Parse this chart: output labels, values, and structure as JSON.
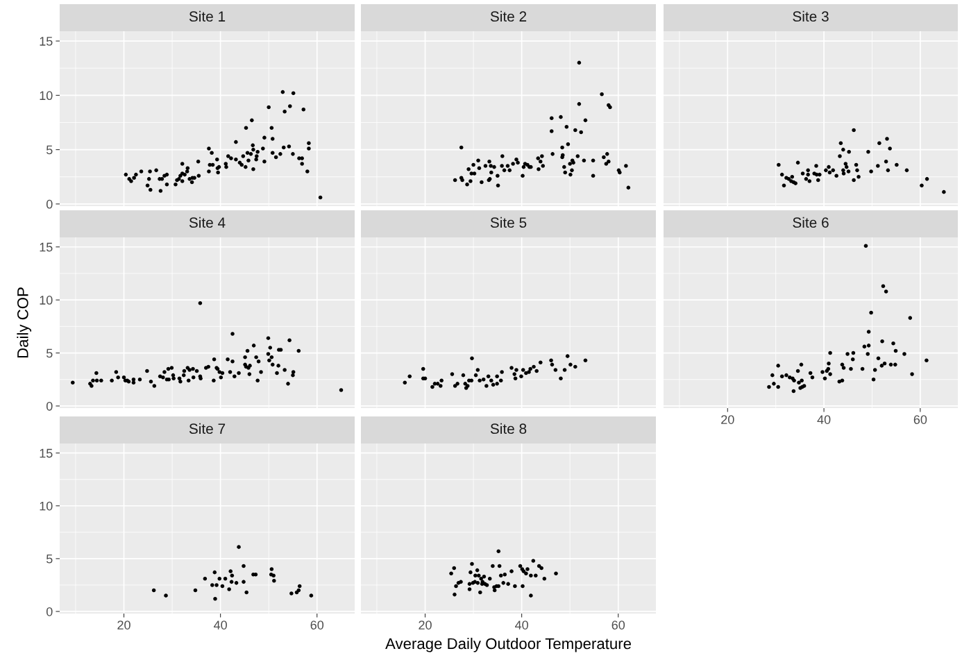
{
  "chart_data": [
    {
      "type": "scatter",
      "title": "Site 1",
      "color": "#000000",
      "marker": "circle",
      "grid": true,
      "tick_labels": "y",
      "xlim": [
        6.7,
        67.8
      ],
      "ylim": [
        -0.2,
        15.9
      ],
      "xticks": [
        20,
        40,
        60
      ],
      "yticks": [
        0,
        5,
        10,
        15
      ],
      "x": [
        20.4,
        21.1,
        21.5,
        22.1,
        22.5,
        23.6,
        24.9,
        25.2,
        25.5,
        25.4,
        26.7,
        27.6,
        27.4,
        27.9,
        28.4,
        28.9,
        28.9,
        30.7,
        31.0,
        31.4,
        31.7,
        32.1,
        32.1,
        32.1,
        32.6,
        33.2,
        33.1,
        33.6,
        34.1,
        34.2,
        34.6,
        35.4,
        35.5,
        37.6,
        37.6,
        37.8,
        38.2,
        38.4,
        39.3,
        39.4,
        39.5,
        39.7,
        41.1,
        41.2,
        41.6,
        42.2,
        43.2,
        43.2,
        44.0,
        44.4,
        44.7,
        45.2,
        45.3,
        45.6,
        45.8,
        46.3,
        46.5,
        46.7,
        46.8,
        46.8,
        47.4,
        47.5,
        47.7,
        48.8,
        49.1,
        49.1,
        50.0,
        50.6,
        50.8,
        50.8,
        51.5,
        52.4,
        52.9,
        53.1,
        53.3,
        54.2,
        54.4,
        55.0,
        55.1,
        56.3,
        56.9,
        56.9,
        57.2,
        58.0,
        58.3,
        58.3,
        60.7
      ],
      "values": [
        2.7,
        2.3,
        2.1,
        2.4,
        2.7,
        3.0,
        1.7,
        2.3,
        1.3,
        3.0,
        3.1,
        1.2,
        2.3,
        2.3,
        2.6,
        2.7,
        1.8,
        1.8,
        2.2,
        2.3,
        2.6,
        3.7,
        2.8,
        2.1,
        2.7,
        3.3,
        3.0,
        2.3,
        2.0,
        2.4,
        2.4,
        3.9,
        2.6,
        5.1,
        3.0,
        3.6,
        4.7,
        3.6,
        4.1,
        3.3,
        2.9,
        3.4,
        3.7,
        3.4,
        4.4,
        4.2,
        5.7,
        4.1,
        3.8,
        3.6,
        4.4,
        3.4,
        7.0,
        4.7,
        4.0,
        4.6,
        7.7,
        5.4,
        5.0,
        3.2,
        4.1,
        4.4,
        4.8,
        5.1,
        6.1,
        3.9,
        8.9,
        7.0,
        4.7,
        6.0,
        4.3,
        4.6,
        10.3,
        5.2,
        8.5,
        5.3,
        9.0,
        4.6,
        10.2,
        4.2,
        4.2,
        3.7,
        8.7,
        3.0,
        5.6,
        5.1,
        0.6
      ]
    },
    {
      "type": "scatter",
      "title": "Site 2",
      "color": "#000000",
      "marker": "circle",
      "grid": true,
      "tick_labels": false,
      "xlim": [
        6.7,
        67.8
      ],
      "ylim": [
        -0.2,
        15.9
      ],
      "xticks": [
        20,
        40,
        60
      ],
      "yticks": [
        0,
        5,
        10,
        15
      ],
      "x": [
        26.2,
        27.5,
        27.7,
        27.5,
        28.7,
        29.0,
        29.4,
        29.6,
        30.0,
        30.2,
        31.0,
        31.2,
        31.7,
        32.5,
        33.2,
        33.3,
        33.4,
        33.6,
        33.7,
        34.3,
        35.0,
        35.1,
        35.9,
        36.0,
        36.4,
        37.1,
        37.5,
        38.2,
        38.9,
        39.2,
        40.2,
        40.4,
        40.7,
        41.2,
        41.6,
        41.9,
        43.4,
        43.5,
        43.9,
        44.2,
        44.4,
        46.2,
        46.2,
        46.4,
        48.1,
        48.4,
        48.5,
        48.4,
        48.8,
        49.0,
        49.3,
        49.6,
        50.0,
        50.1,
        50.4,
        50.5,
        50.7,
        51.1,
        51.6,
        51.9,
        51.9,
        52.3,
        52.9,
        53.2,
        54.8,
        54.8,
        56.6,
        57.0,
        57.7,
        57.5,
        58.0,
        58.0,
        58.3,
        60.1,
        60.3,
        61.6,
        62.1
      ],
      "values": [
        2.2,
        2.4,
        2.2,
        5.2,
        1.8,
        3.2,
        2.1,
        2.8,
        3.6,
        2.8,
        4.0,
        3.3,
        2.0,
        3.5,
        2.2,
        3.9,
        2.3,
        3.5,
        2.9,
        3.4,
        2.6,
        1.7,
        3.5,
        4.4,
        3.1,
        3.5,
        3.1,
        3.7,
        4.1,
        3.8,
        2.6,
        3.4,
        3.7,
        3.6,
        3.4,
        3.4,
        4.2,
        3.2,
        3.9,
        4.4,
        3.5,
        7.9,
        6.7,
        4.6,
        8.0,
        5.2,
        4.5,
        4.3,
        3.4,
        2.9,
        7.1,
        5.5,
        3.7,
        2.7,
        3.1,
        4.0,
        3.8,
        6.8,
        4.4,
        13.0,
        9.2,
        6.6,
        4.0,
        7.7,
        4.0,
        2.6,
        10.1,
        4.3,
        4.6,
        3.7,
        3.9,
        9.1,
        8.9,
        3.1,
        2.9,
        3.5,
        1.5
      ]
    },
    {
      "type": "scatter",
      "title": "Site 3",
      "color": "#000000",
      "marker": "circle",
      "grid": true,
      "tick_labels": false,
      "xlim": [
        6.7,
        67.8
      ],
      "ylim": [
        -0.2,
        15.9
      ],
      "xticks": [
        20,
        40,
        60
      ],
      "yticks": [
        0,
        5,
        10,
        15
      ],
      "x": [
        30.6,
        31.3,
        31.7,
        32.2,
        32.7,
        33.2,
        33.4,
        33.7,
        34.1,
        34.6,
        35.6,
        36.3,
        36.7,
        36.7,
        37.0,
        38.0,
        38.4,
        38.5,
        38.8,
        39.1,
        40.4,
        41.0,
        41.2,
        41.9,
        42.6,
        43.3,
        43.5,
        44.0,
        44.0,
        44.1,
        44.5,
        44.7,
        45.1,
        45.2,
        46.2,
        46.2,
        46.7,
        46.9,
        47.2,
        49.2,
        49.8,
        51.2,
        51.5,
        52.9,
        53.1,
        53.3,
        53.7,
        55.1,
        57.2,
        60.3,
        61.4,
        64.9
      ],
      "values": [
        3.6,
        2.7,
        1.7,
        2.4,
        2.3,
        2.1,
        2.5,
        2.0,
        1.9,
        3.8,
        2.8,
        2.3,
        3.1,
        2.7,
        2.1,
        2.8,
        3.5,
        2.7,
        2.2,
        2.7,
        3.1,
        3.4,
        2.9,
        3.1,
        2.6,
        4.4,
        5.6,
        5.0,
        3.1,
        2.8,
        3.7,
        3.4,
        3.0,
        4.8,
        6.8,
        2.2,
        3.6,
        3.1,
        2.5,
        4.8,
        3.0,
        3.5,
        5.6,
        3.9,
        6.0,
        3.1,
        5.1,
        3.6,
        3.1,
        1.7,
        2.3,
        1.1
      ]
    },
    {
      "type": "scatter",
      "title": "Site 4",
      "ylabel": "Daily COP",
      "color": "#000000",
      "marker": "circle",
      "grid": true,
      "tick_labels": "y",
      "xlim": [
        6.7,
        67.8
      ],
      "ylim": [
        -0.2,
        15.9
      ],
      "xticks": [
        20,
        40,
        60
      ],
      "yticks": [
        0,
        5,
        10,
        15
      ],
      "x": [
        9.4,
        13.0,
        13.3,
        13.6,
        14.3,
        14.4,
        15.3,
        17.5,
        18.4,
        18.8,
        20.0,
        20.3,
        20.7,
        21.0,
        22.0,
        22.0,
        23.3,
        24.8,
        25.6,
        26.3,
        27.5,
        28.1,
        28.4,
        28.9,
        29.2,
        29.3,
        29.9,
        30.2,
        30.3,
        31.5,
        31.7,
        32.4,
        32.5,
        33.2,
        33.4,
        33.6,
        34.3,
        34.4,
        35.1,
        35.8,
        35.8,
        35.9,
        37.0,
        37.5,
        38.6,
        38.7,
        39.2,
        39.4,
        39.8,
        40.1,
        40.4,
        41.5,
        42.0,
        42.5,
        42.5,
        42.9,
        43.8,
        45.1,
        45.1,
        45.3,
        45.6,
        45.8,
        46.0,
        46.1,
        46.9,
        47.4,
        47.7,
        47.9,
        48.4,
        49.9,
        49.9,
        50.1,
        50.3,
        50.6,
        50.8,
        51.7,
        52.0,
        52.1,
        52.5,
        53.3,
        54.0,
        54.3,
        55.0,
        55.1,
        56.2,
        65.0
      ],
      "values": [
        2.2,
        2.1,
        1.9,
        2.4,
        3.1,
        2.4,
        2.4,
        2.4,
        3.2,
        2.7,
        2.7,
        2.4,
        2.4,
        2.3,
        2.5,
        2.2,
        2.5,
        3.3,
        2.3,
        1.9,
        2.8,
        2.7,
        3.2,
        2.5,
        3.5,
        2.5,
        3.6,
        2.9,
        2.6,
        2.6,
        2.3,
        2.9,
        3.3,
        3.6,
        2.4,
        3.4,
        3.5,
        2.7,
        3.3,
        9.7,
        2.8,
        2.6,
        3.6,
        3.7,
        2.4,
        4.4,
        3.6,
        3.5,
        3.2,
        2.7,
        3.1,
        4.4,
        3.2,
        6.8,
        4.2,
        2.8,
        3.1,
        4.6,
        3.9,
        3.7,
        5.2,
        3.6,
        3.0,
        3.8,
        5.7,
        4.6,
        2.4,
        4.2,
        3.2,
        6.4,
        4.9,
        4.3,
        5.5,
        4.6,
        3.9,
        3.1,
        3.8,
        5.3,
        5.3,
        3.4,
        2.1,
        6.2,
        2.9,
        3.2,
        5.2,
        1.5
      ]
    },
    {
      "type": "scatter",
      "title": "Site 5",
      "color": "#000000",
      "marker": "circle",
      "grid": true,
      "tick_labels": false,
      "xlim": [
        6.7,
        67.8
      ],
      "ylim": [
        -0.2,
        15.9
      ],
      "xticks": [
        20,
        40,
        60
      ],
      "yticks": [
        0,
        5,
        10,
        15
      ],
      "x": [
        15.8,
        16.8,
        19.6,
        19.6,
        20.0,
        21.5,
        22.0,
        22.6,
        23.2,
        23.4,
        25.6,
        26.2,
        26.7,
        27.9,
        28.3,
        28.5,
        28.8,
        29.1,
        29.6,
        29.7,
        30.5,
        30.9,
        31.3,
        32.1,
        32.7,
        33.1,
        33.7,
        34.1,
        34.9,
        34.9,
        35.7,
        35.9,
        37.9,
        38.5,
        38.7,
        38.9,
        39.9,
        40.3,
        40.9,
        41.5,
        41.8,
        42.5,
        43.1,
        43.7,
        43.9,
        46.1,
        46.3,
        47.0,
        48.1,
        48.9,
        49.5,
        50.1,
        51.1,
        53.2
      ],
      "values": [
        2.2,
        2.8,
        3.5,
        2.6,
        2.6,
        1.8,
        2.1,
        2.1,
        1.9,
        2.4,
        3.0,
        1.9,
        2.1,
        2.9,
        2.1,
        1.7,
        1.9,
        2.4,
        2.4,
        4.5,
        2.9,
        3.4,
        2.4,
        2.5,
        1.9,
        2.8,
        2.4,
        2.0,
        2.1,
        2.8,
        2.4,
        3.2,
        3.6,
        3.0,
        2.6,
        3.4,
        2.8,
        3.4,
        3.1,
        3.2,
        3.5,
        3.7,
        3.3,
        null,
        4.1,
        4.3,
        3.9,
        3.4,
        2.6,
        3.4,
        4.7,
        3.9,
        3.7,
        4.3
      ]
    },
    {
      "type": "scatter",
      "title": "Site 6",
      "color": "#000000",
      "marker": "circle",
      "grid": true,
      "tick_labels": "x",
      "xlim": [
        6.7,
        67.8
      ],
      "ylim": [
        -0.2,
        15.9
      ],
      "xticks": [
        20,
        40,
        60
      ],
      "yticks": [
        0,
        5,
        10,
        15
      ],
      "x": [
        28.6,
        29.3,
        29.6,
        30.5,
        30.5,
        31.3,
        32.2,
        32.9,
        33.5,
        33.7,
        33.8,
        34.6,
        34.8,
        35.1,
        35.3,
        35.4,
        35.5,
        35.9,
        37.2,
        37.6,
        39.7,
        40.2,
        40.6,
        40.9,
        41.0,
        41.3,
        41.3,
        43.2,
        43.8,
        43.8,
        44.1,
        44.9,
        45.6,
        46.0,
        46.1,
        48.0,
        48.4,
        48.7,
        49.1,
        49.3,
        49.3,
        49.8,
        50.3,
        50.6,
        51.3,
        52.0,
        52.1,
        52.3,
        52.6,
        52.9,
        53.9,
        54.4,
        54.8,
        54.9,
        56.7,
        57.9,
        58.3,
        61.3
      ],
      "values": [
        1.8,
        2.9,
        2.1,
        1.8,
        3.8,
        2.8,
        2.9,
        2.7,
        2.6,
        1.4,
        2.4,
        3.3,
        2.2,
        1.7,
        3.9,
        2.4,
        1.8,
        1.9,
        3.1,
        2.7,
        3.2,
        2.6,
        3.3,
        3.5,
        4.0,
        3.0,
        5.0,
        2.3,
        2.4,
        3.9,
        3.6,
        4.9,
        3.5,
        4.4,
        5.0,
        3.5,
        5.6,
        15.1,
        4.9,
        7.0,
        5.7,
        8.8,
        2.5,
        3.4,
        4.5,
        3.8,
        6.1,
        11.3,
        4.0,
        10.8,
        3.9,
        5.9,
        3.9,
        5.2,
        4.9,
        8.3,
        3.0,
        4.3
      ]
    },
    {
      "type": "scatter",
      "title": "Site 7",
      "color": "#000000",
      "marker": "circle",
      "grid": true,
      "xlim": [
        6.7,
        67.8
      ],
      "ylim": [
        -0.2,
        15.9
      ],
      "xticks": [
        20,
        40,
        60
      ],
      "yticks": [
        0,
        5,
        10,
        15
      ],
      "x": [
        26.2,
        28.7,
        34.8,
        36.8,
        38.3,
        38.8,
        38.9,
        39.2,
        39.8,
        40.4,
        41.0,
        41.8,
        42.1,
        42.4,
        42.3,
        43.3,
        43.8,
        44.8,
        44.8,
        45.4,
        46.8,
        47.3,
        50.6,
        50.5,
        51.0,
        51.1,
        54.5,
        54.7,
        55.8,
        56.2,
        56.4,
        58.8
      ],
      "values": [
        2.0,
        1.5,
        2.0,
        3.1,
        2.5,
        3.7,
        1.2,
        2.5,
        3.1,
        2.4,
        3.1,
        2.1,
        3.8,
        3.4,
        2.8,
        2.7,
        6.1,
        4.3,
        2.8,
        1.8,
        3.5,
        3.5,
        4.0,
        3.5,
        3.4,
        2.9,
        null,
        1.7,
        1.8,
        2.0,
        2.4,
        1.5
      ]
    },
    {
      "type": "scatter",
      "title": "Site 8",
      "xlabel": "Average Daily Outdoor Temperature",
      "color": "#000000",
      "marker": "circle",
      "grid": true,
      "tick_labels": "x",
      "xlim": [
        6.7,
        67.8
      ],
      "ylim": [
        -0.2,
        15.9
      ],
      "xticks": [
        20,
        40,
        60
      ],
      "yticks": [
        0,
        5,
        10,
        15
      ],
      "x": [
        25.4,
        26.0,
        26.1,
        26.4,
        26.9,
        27.4,
        29.2,
        29.2,
        29.4,
        29.7,
        29.9,
        30.3,
        30.4,
        30.8,
        30.9,
        31.1,
        31.4,
        31.6,
        31.8,
        31.9,
        32.2,
        32.4,
        32.8,
        33.4,
        34.0,
        34.3,
        34.4,
        34.8,
        35.2,
        35.2,
        35.4,
        35.7,
        36.2,
        36.5,
        37.2,
        37.9,
        38.6,
        39.7,
        40.1,
        40.2,
        40.4,
        40.9,
        41.2,
        41.9,
        41.9,
        42.4,
        42.9,
        43.6,
        44.1,
        44.7,
        47.1
      ],
      "values": [
        3.6,
        4.1,
        1.6,
        2.4,
        2.7,
        2.8,
        2.1,
        2.6,
        3.7,
        4.5,
        2.7,
        2.8,
        3.4,
        3.9,
        2.7,
        3.4,
        1.8,
        3.1,
        2.6,
        2.8,
        3.3,
        2.6,
        2.5,
        3.1,
        4.3,
        2.3,
        2.0,
        2.4,
        5.7,
        2.4,
        4.3,
        3.4,
        2.7,
        3.5,
        2.6,
        3.8,
        2.4,
        4.3,
        4.0,
        2.4,
        3.8,
        3.6,
        4.0,
        1.5,
        3.4,
        4.8,
        3.4,
        4.3,
        4.1,
        3.1,
        3.6
      ]
    }
  ]
}
